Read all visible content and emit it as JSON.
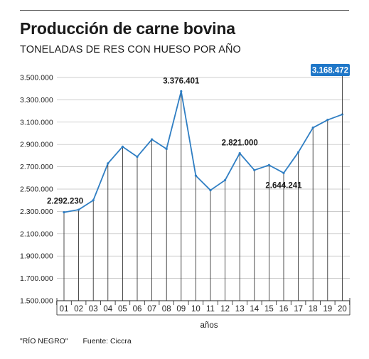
{
  "header": {
    "title": "Producción de carne bovina",
    "subtitle": "TONELADAS DE RES CON HUESO POR AÑO"
  },
  "footer": {
    "publisher": "\"RÍO NEGRO\"",
    "source": "Fuente: Ciccra"
  },
  "colors": {
    "line": "#2f7ec3",
    "highlight_box": "#1f77c8",
    "drop_lines": "#222222",
    "grid": "#bbbbbb"
  },
  "chart_data": {
    "type": "line",
    "title": "Producción de carne bovina",
    "subtitle": "TONELADAS DE RES CON HUESO POR AÑO",
    "xlabel": "años",
    "ylabel": "",
    "categories": [
      "01",
      "02",
      "03",
      "04",
      "05",
      "06",
      "07",
      "08",
      "09",
      "10",
      "11",
      "12",
      "13",
      "14",
      "15",
      "16",
      "17",
      "18",
      "19",
      "20"
    ],
    "series": [
      {
        "values": [
          2292230,
          2315000,
          2400000,
          2730000,
          2880000,
          2790000,
          2945000,
          2860000,
          3376401,
          2620000,
          2490000,
          2580000,
          2821000,
          2670000,
          2715000,
          2644241,
          2830000,
          3050000,
          3120000,
          3168472
        ]
      }
    ],
    "ylim": [
      1500000,
      3500000
    ],
    "yticks": [
      1500000,
      1700000,
      1900000,
      2100000,
      2300000,
      2500000,
      2700000,
      2900000,
      3100000,
      3300000,
      3500000
    ],
    "ytick_labels": [
      "1.500.000",
      "1.700.000",
      "1.900.000",
      "2.100.000",
      "2.300.000",
      "2.500.000",
      "2.700.000",
      "2.900.000",
      "3.100.000",
      "3.300.000",
      "3.500.000"
    ],
    "grid": true,
    "annotations": [
      {
        "index": 0,
        "label": "2.292.230"
      },
      {
        "index": 8,
        "label": "3.376.401"
      },
      {
        "index": 12,
        "label": "2.821.000"
      },
      {
        "index": 15,
        "label": "2.644.241"
      },
      {
        "index": 19,
        "label": "3.168.472",
        "highlight": true
      }
    ]
  }
}
